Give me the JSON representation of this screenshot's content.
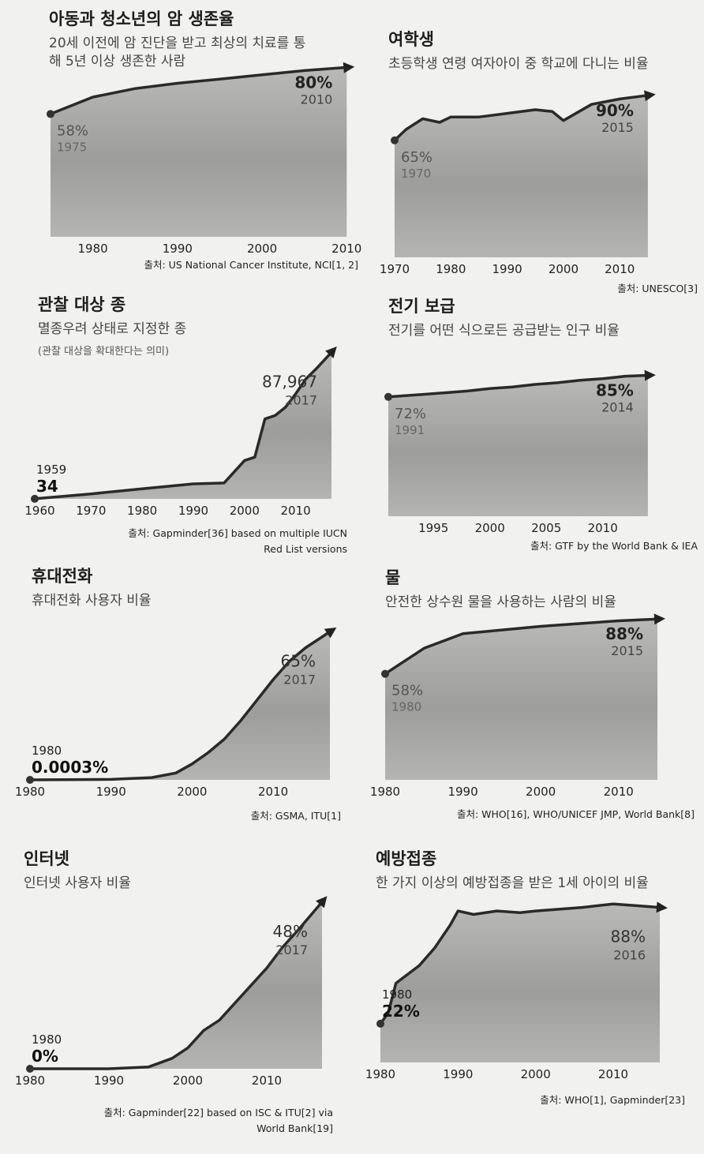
{
  "chart_data": [
    {
      "id": "childhood-cancer",
      "type": "area",
      "title": "아동과 청소년의 암 생존율",
      "subtitle": [
        "20세 이전에 암 진단을 받고 최상의 치료를 통",
        "해 5년 이상 생존한 사람"
      ],
      "source": [
        "출처: US National Cancer Institute, NCI[1, 2]"
      ],
      "x_ticks": [
        1980,
        1990,
        2000,
        2010
      ],
      "xlim": [
        1975,
        2011
      ],
      "ylim": [
        0,
        85
      ],
      "unit": "%",
      "x": [
        1975,
        1980,
        1985,
        1990,
        1995,
        2000,
        2005,
        2010
      ],
      "y": [
        58,
        66,
        70,
        72.5,
        74.5,
        76.5,
        78.5,
        80
      ],
      "start_label": {
        "value": "58%",
        "year": "1975"
      },
      "end_label": {
        "value": "80%",
        "year": "2010"
      }
    },
    {
      "id": "girls-school",
      "type": "area",
      "title": "여학생",
      "subtitle": [
        "초등학생 연령 여자아이 중 학교에 다니는 비율"
      ],
      "source": [
        "출처: UNESCO[3]"
      ],
      "x_ticks": [
        1970,
        1980,
        1990,
        2000,
        2010
      ],
      "xlim": [
        1970,
        2016
      ],
      "ylim": [
        0,
        100
      ],
      "unit": "%",
      "x": [
        1970,
        1972,
        1975,
        1978,
        1980,
        1985,
        1990,
        1995,
        1998,
        2000,
        2005,
        2010,
        2015
      ],
      "y": [
        65,
        71,
        77,
        75,
        78,
        78,
        80,
        82,
        81,
        76,
        85,
        88,
        90
      ],
      "start_label": {
        "value": "65%",
        "year": "1970"
      },
      "end_label": {
        "value": "90%",
        "year": "2015"
      }
    },
    {
      "id": "monitored-species",
      "type": "area",
      "title": "관찰 대상 종",
      "subtitle": [
        "멸종우려 상태로 지정한 종"
      ],
      "note": "(관찰 대상을 확대한다는 의미)",
      "source": [
        "출처: Gapminder[36] based on multiple IUCN",
        "Red List versions"
      ],
      "x_ticks": [
        1960,
        1970,
        1980,
        1990,
        2000,
        2010
      ],
      "xlim": [
        1959,
        2017
      ],
      "ylim": [
        0,
        90000
      ],
      "unit": "species",
      "x": [
        1959,
        1970,
        1980,
        1990,
        1996,
        2000,
        2002,
        2004,
        2006,
        2008,
        2010,
        2012,
        2014,
        2017
      ],
      "y": [
        34,
        3000,
        6000,
        9000,
        9500,
        23000,
        25000,
        48000,
        50000,
        55000,
        63000,
        72000,
        78000,
        87967
      ],
      "start_label": {
        "value": "34",
        "year": "1959"
      },
      "end_label": {
        "value": "87,967",
        "year": "2017"
      }
    },
    {
      "id": "electricity",
      "type": "area",
      "title": "전기 보급",
      "subtitle": [
        "전기를 어떤 식으로든 공급받는 인구 비율"
      ],
      "source": [
        "출처: GTF by the World Bank & IEA"
      ],
      "x_ticks": [
        1995,
        2000,
        2005,
        2010
      ],
      "xlim": [
        1991,
        2014.5
      ],
      "ylim": [
        0,
        100
      ],
      "unit": "%",
      "x": [
        1991,
        1994,
        1996,
        1998,
        2000,
        2002,
        2004,
        2006,
        2008,
        2010,
        2012,
        2014
      ],
      "y": [
        72,
        73.5,
        74.5,
        75.5,
        77,
        78,
        79.5,
        80.5,
        82,
        83,
        84.5,
        85
      ],
      "start_label": {
        "value": "72%",
        "year": "1991"
      },
      "end_label": {
        "value": "85%",
        "year": "2014"
      }
    },
    {
      "id": "mobile-phones",
      "type": "area",
      "title": "휴대전화",
      "subtitle": [
        "휴대전화 사용자 비율"
      ],
      "source": [
        "출처: GSMA, ITU[1]"
      ],
      "x_ticks": [
        1980,
        1990,
        2000,
        2010
      ],
      "xlim": [
        1980,
        2017
      ],
      "ylim": [
        0,
        70
      ],
      "unit": "%",
      "x": [
        1980,
        1990,
        1995,
        1998,
        2000,
        2002,
        2004,
        2006,
        2008,
        2010,
        2012,
        2014,
        2017
      ],
      "y": [
        0.0003,
        0.2,
        1,
        3,
        7,
        12,
        18,
        26,
        35,
        44,
        52,
        58,
        65
      ],
      "start_label": {
        "value": "0.0003%",
        "year": "1980"
      },
      "end_label": {
        "value": "65%",
        "year": "2017"
      }
    },
    {
      "id": "safe-water",
      "type": "area",
      "title": "물",
      "subtitle": [
        "안전한 상수원 물을 사용하는 사람의 비율"
      ],
      "source": [
        "출처: WHO[16], WHO/UNICEF JMP, World Bank[8]"
      ],
      "x_ticks": [
        1980,
        1990,
        2000,
        2010
      ],
      "xlim": [
        1980,
        2015
      ],
      "ylim": [
        0,
        95
      ],
      "unit": "%",
      "x": [
        1980,
        1985,
        1990,
        1995,
        2000,
        2005,
        2010,
        2015
      ],
      "y": [
        58,
        72,
        80,
        82,
        84,
        85.5,
        87,
        88
      ],
      "start_label": {
        "value": "58%",
        "year": "1980"
      },
      "end_label": {
        "value": "88%",
        "year": "2015"
      }
    },
    {
      "id": "internet",
      "type": "area",
      "title": "인터넷",
      "subtitle": [
        "인터넷 사용자 비율"
      ],
      "source": [
        "출처: Gapminder[22] based on ISC & ITU[2] via",
        "World Bank[19]"
      ],
      "x_ticks": [
        1980,
        1990,
        2000,
        2010
      ],
      "xlim": [
        1980,
        2017
      ],
      "ylim": [
        0,
        50
      ],
      "unit": "%",
      "x": [
        1980,
        1990,
        1995,
        1998,
        2000,
        2002,
        2004,
        2006,
        2008,
        2010,
        2012,
        2014,
        2017
      ],
      "y": [
        0,
        0,
        0.5,
        3,
        6,
        11,
        14,
        19,
        24,
        29,
        35,
        40,
        48
      ],
      "start_label": {
        "value": "0%",
        "year": "1980"
      },
      "end_label": {
        "value": "48%",
        "year": "2017"
      }
    },
    {
      "id": "vaccination",
      "type": "area",
      "title": "예방접종",
      "subtitle": [
        "한 가지 이상의 예방접종을 받은 1세 아이의 비율"
      ],
      "source": [
        "출처: WHO[1], Gapminder[23]"
      ],
      "x_ticks": [
        1980,
        1990,
        2000,
        2010
      ],
      "xlim": [
        1980,
        2016
      ],
      "ylim": [
        0,
        95
      ],
      "unit": "%",
      "x": [
        1980,
        1981,
        1982,
        1985,
        1987,
        1989,
        1990,
        1992,
        1995,
        1998,
        2000,
        2003,
        2006,
        2010,
        2013,
        2016
      ],
      "y": [
        22,
        28,
        45,
        55,
        65,
        78,
        86,
        84,
        86,
        85,
        86,
        87,
        88,
        90,
        89,
        88
      ],
      "start_label": {
        "value": "22%",
        "year": "1980"
      },
      "end_label": {
        "value": "88%",
        "year": "2016"
      }
    }
  ]
}
